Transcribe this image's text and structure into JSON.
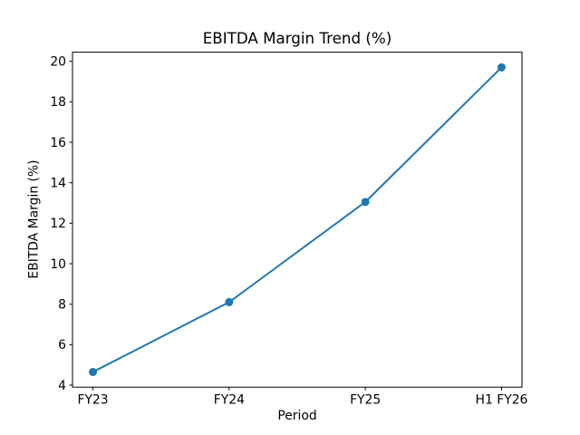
{
  "figure": {
    "background": "#ffffff"
  },
  "chart_data": {
    "type": "line",
    "title": "EBITDA Margin Trend (%)",
    "xlabel": "Period",
    "ylabel": "EBITDA Margin (%)",
    "categories": [
      "FY23",
      "FY24",
      "FY25",
      "H1 FY26"
    ],
    "values": [
      4.65,
      8.1,
      13.05,
      19.7
    ],
    "series_name": "EBITDA Margin",
    "yticks": [
      4,
      6,
      8,
      10,
      12,
      14,
      16,
      18,
      20
    ],
    "xlim": [
      -0.15,
      3.15
    ],
    "ylim": [
      3.9,
      20.45
    ],
    "grid": false,
    "legend_position": "none",
    "line_color": "#1f77b4",
    "marker": "o",
    "axis_color": "#000000"
  }
}
